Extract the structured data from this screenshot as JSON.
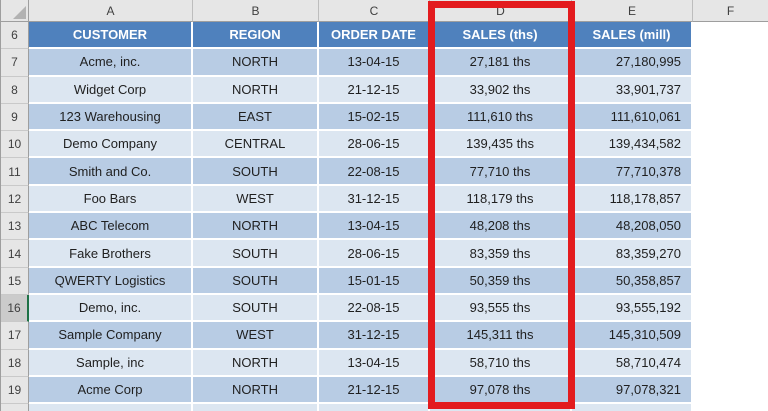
{
  "grid": {
    "select_all": "select-all",
    "column_headers": [
      "A",
      "B",
      "C",
      "D",
      "E",
      "F"
    ],
    "row_headers": [
      "6",
      "7",
      "8",
      "9",
      "10",
      "11",
      "12",
      "13",
      "14",
      "15",
      "16",
      "17",
      "18",
      "19"
    ],
    "active_row_header": "16"
  },
  "table": {
    "columns": [
      "CUSTOMER",
      "REGION",
      "ORDER DATE",
      "SALES (ths)",
      "SALES (mill)"
    ],
    "rows": [
      {
        "n": "7",
        "shade": "dark",
        "cells": [
          "Acme, inc.",
          "NORTH",
          "13-04-15",
          "27,181 ths",
          "27,180,995"
        ]
      },
      {
        "n": "8",
        "shade": "light",
        "cells": [
          "Widget Corp",
          "NORTH",
          "21-12-15",
          "33,902 ths",
          "33,901,737"
        ]
      },
      {
        "n": "9",
        "shade": "dark",
        "cells": [
          "123 Warehousing",
          "EAST",
          "15-02-15",
          "111,610 ths",
          "111,610,061"
        ]
      },
      {
        "n": "10",
        "shade": "light",
        "cells": [
          "Demo Company",
          "CENTRAL",
          "28-06-15",
          "139,435 ths",
          "139,434,582"
        ]
      },
      {
        "n": "11",
        "shade": "dark",
        "cells": [
          "Smith and Co.",
          "SOUTH",
          "22-08-15",
          "77,710 ths",
          "77,710,378"
        ]
      },
      {
        "n": "12",
        "shade": "light",
        "cells": [
          "Foo Bars",
          "WEST",
          "31-12-15",
          "118,179 ths",
          "118,178,857"
        ]
      },
      {
        "n": "13",
        "shade": "dark",
        "cells": [
          "ABC Telecom",
          "NORTH",
          "13-04-15",
          "48,208 ths",
          "48,208,050"
        ]
      },
      {
        "n": "14",
        "shade": "light",
        "cells": [
          "Fake Brothers",
          "SOUTH",
          "28-06-15",
          "83,359 ths",
          "83,359,270"
        ]
      },
      {
        "n": "15",
        "shade": "dark",
        "cells": [
          "QWERTY Logistics",
          "SOUTH",
          "15-01-15",
          "50,359 ths",
          "50,358,857"
        ]
      },
      {
        "n": "16",
        "shade": "light",
        "cells": [
          "Demo, inc.",
          "SOUTH",
          "22-08-15",
          "93,555 ths",
          "93,555,192"
        ],
        "active": true
      },
      {
        "n": "17",
        "shade": "dark",
        "cells": [
          "Sample Company",
          "WEST",
          "31-12-15",
          "145,311 ths",
          "145,310,509"
        ]
      },
      {
        "n": "18",
        "shade": "light",
        "cells": [
          "Sample, inc",
          "NORTH",
          "13-04-15",
          "58,710 ths",
          "58,710,474"
        ]
      },
      {
        "n": "19",
        "shade": "dark",
        "cells": [
          "Acme Corp",
          "NORTH",
          "21-12-15",
          "97,078 ths",
          "97,078,321"
        ]
      }
    ]
  },
  "annotation": {
    "type": "red-highlight-box",
    "highlighted_column": "D",
    "color": "#e31b1e"
  },
  "colors": {
    "table_header_fill": "#4f81bd",
    "row_dark_fill": "#b8cce4",
    "row_light_fill": "#dce6f1",
    "grid_header_fill": "#e6e6e6",
    "active_row_accent": "#1e7145"
  }
}
